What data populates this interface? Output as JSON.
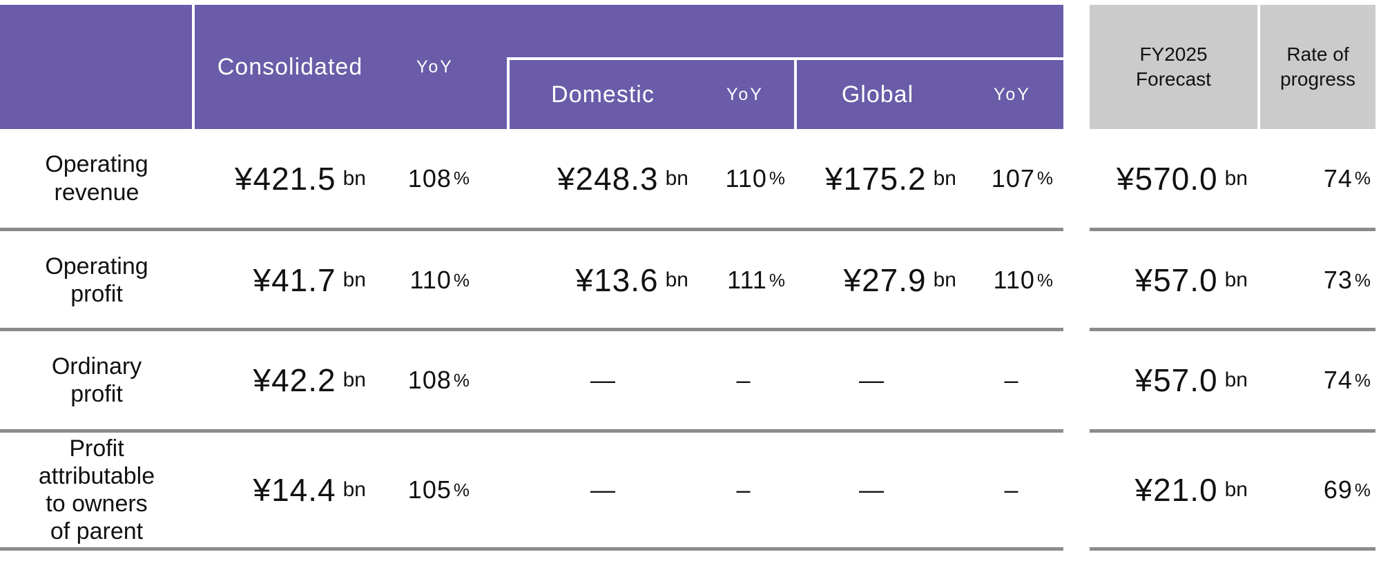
{
  "table": {
    "header": {
      "consolidated": "Consolidated",
      "consolidated_yoy": "YoY",
      "domestic": "Domestic",
      "domestic_yoy": "YoY",
      "global": "Global",
      "global_yoy": "YoY",
      "forecast": "FY2025\nForecast",
      "progress": "Rate of\nprogress"
    },
    "rows": [
      {
        "label": "Operating\nrevenue",
        "consolidated": {
          "value": "¥421.5",
          "unit": "bn"
        },
        "consolidated_yoy": {
          "value": "108",
          "unit": "%"
        },
        "domestic": {
          "value": "¥248.3",
          "unit": "bn"
        },
        "domestic_yoy": {
          "value": "110",
          "unit": "%"
        },
        "global": {
          "value": "¥175.2",
          "unit": "bn"
        },
        "global_yoy": {
          "value": "107",
          "unit": "%"
        },
        "forecast": {
          "value": "¥570.0",
          "unit": "bn"
        },
        "progress": {
          "value": "74",
          "unit": "%"
        }
      },
      {
        "label": "Operating\nprofit",
        "consolidated": {
          "value": "¥41.7",
          "unit": "bn"
        },
        "consolidated_yoy": {
          "value": "110",
          "unit": "%"
        },
        "domestic": {
          "value": "¥13.6",
          "unit": "bn"
        },
        "domestic_yoy": {
          "value": "111",
          "unit": "%"
        },
        "global": {
          "value": "¥27.9",
          "unit": "bn"
        },
        "global_yoy": {
          "value": "110",
          "unit": "%"
        },
        "forecast": {
          "value": "¥57.0",
          "unit": "bn"
        },
        "progress": {
          "value": "73",
          "unit": "%"
        }
      },
      {
        "label": "Ordinary\nprofit",
        "consolidated": {
          "value": "¥42.2",
          "unit": "bn"
        },
        "consolidated_yoy": {
          "value": "108",
          "unit": "%"
        },
        "domestic": {
          "value": "—",
          "unit": ""
        },
        "domestic_yoy": {
          "value": "–",
          "unit": ""
        },
        "global": {
          "value": "—",
          "unit": ""
        },
        "global_yoy": {
          "value": "–",
          "unit": ""
        },
        "forecast": {
          "value": "¥57.0",
          "unit": "bn"
        },
        "progress": {
          "value": "74",
          "unit": "%"
        }
      },
      {
        "label": "Profit\nattributable\nto owners\nof parent",
        "consolidated": {
          "value": "¥14.4",
          "unit": "bn"
        },
        "consolidated_yoy": {
          "value": "105",
          "unit": "%"
        },
        "domestic": {
          "value": "—",
          "unit": ""
        },
        "domestic_yoy": {
          "value": "–",
          "unit": ""
        },
        "global": {
          "value": "—",
          "unit": ""
        },
        "global_yoy": {
          "value": "–",
          "unit": ""
        },
        "forecast": {
          "value": "¥21.0",
          "unit": "bn"
        },
        "progress": {
          "value": "69",
          "unit": "%"
        }
      }
    ]
  },
  "colors": {
    "header_purple": "#6A5CA8",
    "header_gray": "#CCCBCB",
    "row_divider_gray": "#8B8B8B",
    "header_text_on_purple": "#FFFFFF",
    "body_text": "#111111"
  }
}
